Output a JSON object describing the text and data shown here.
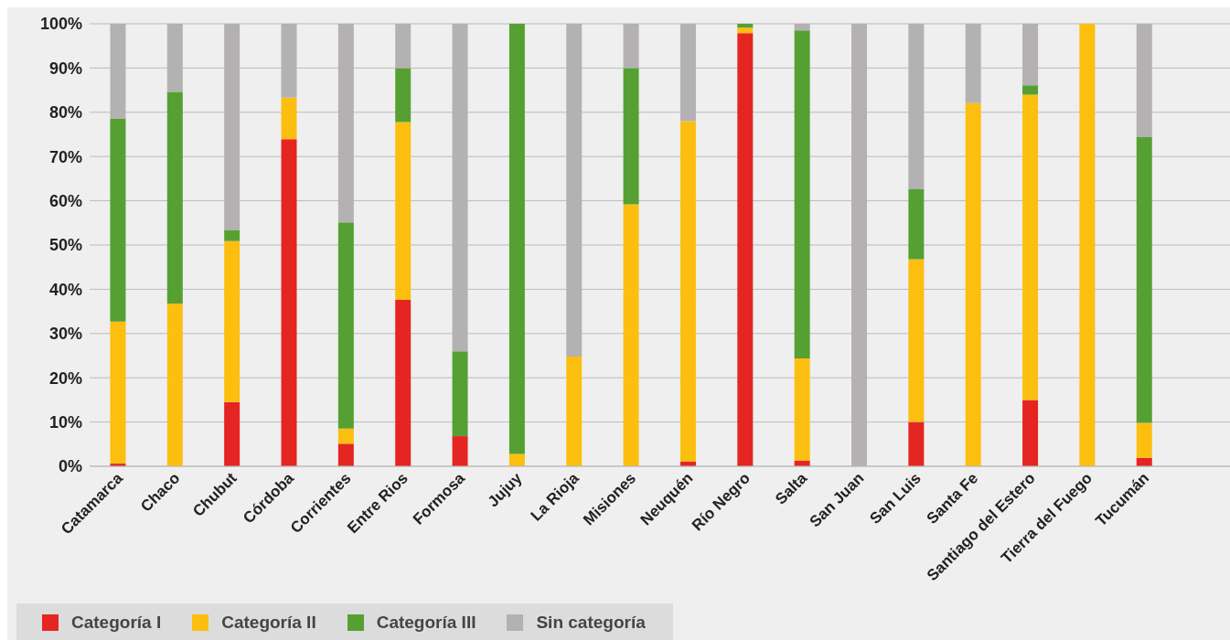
{
  "chart_data": {
    "type": "bar",
    "stacked": true,
    "categories": [
      "Catamarca",
      "Chaco",
      "Chubut",
      "Córdoba",
      "Corrientes",
      "Entre Rios",
      "Formosa",
      "Jujuy",
      "La Rioja",
      "Misiones",
      "Neuquén",
      "Río Negro",
      "Salta",
      "San Juan",
      "San Luis",
      "Santa Fe",
      "Santiago del Estero",
      "Tierra del Fuego",
      "Tucumán",
      null
    ],
    "series": [
      {
        "name": "Categoría I",
        "color": "#e52521",
        "values": [
          0.6,
          0,
          14.5,
          73.9,
          5.1,
          37.6,
          6.8,
          0,
          0,
          0,
          1.1,
          97.9,
          1.3,
          0,
          10,
          0,
          15,
          0,
          1.9,
          null
        ]
      },
      {
        "name": "Categoría II",
        "color": "#fcbf10",
        "values": [
          32.1,
          36.8,
          36.4,
          9.4,
          3.4,
          40.2,
          0,
          2.8,
          24.8,
          59.2,
          76.9,
          1.2,
          23.1,
          0,
          36.8,
          82.1,
          69,
          100,
          7.9,
          null
        ]
      },
      {
        "name": "Categoría III",
        "color": "#56a033",
        "values": [
          45.9,
          47.8,
          2.5,
          0,
          46.6,
          12.2,
          19.2,
          97.2,
          0,
          30.8,
          0,
          0.9,
          74.1,
          0,
          15.8,
          0,
          2.1,
          0,
          64.6,
          null
        ]
      },
      {
        "name": "Sin categoría",
        "color": "#b3b1b1",
        "values": [
          21.4,
          15.4,
          46.6,
          16.7,
          44.9,
          10,
          74,
          0,
          75.2,
          10,
          22,
          0,
          1.5,
          100,
          37.4,
          17.9,
          13.9,
          0,
          25.6,
          null
        ]
      }
    ],
    "ylim": [
      0,
      100
    ],
    "yticks": [
      {
        "value": 0,
        "label": "0%"
      },
      {
        "value": 10,
        "label": "10%"
      },
      {
        "value": 20,
        "label": "20%"
      },
      {
        "value": 30,
        "label": "30%"
      },
      {
        "value": 40,
        "label": "40%"
      },
      {
        "value": 50,
        "label": "50%"
      },
      {
        "value": 60,
        "label": "60%"
      },
      {
        "value": 70,
        "label": "70%"
      },
      {
        "value": 80,
        "label": "80%"
      },
      {
        "value": 90,
        "label": "90%"
      },
      {
        "value": 100,
        "label": "100%"
      }
    ],
    "grid": "y",
    "legend": "bottom left"
  }
}
